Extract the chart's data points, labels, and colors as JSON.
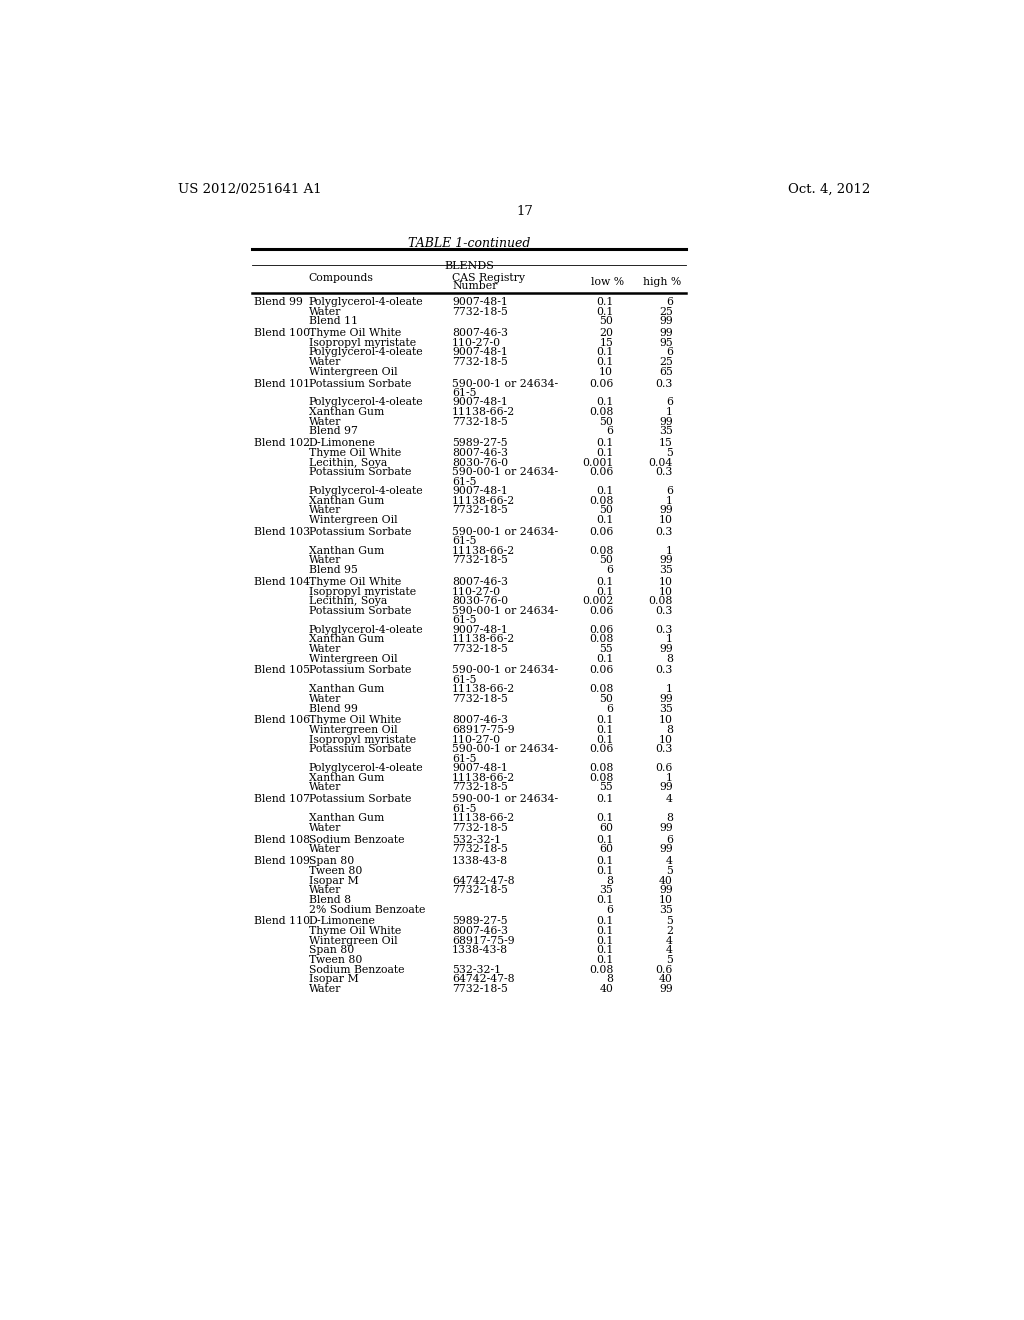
{
  "header_left": "US 2012/0251641 A1",
  "header_right": "Oct. 4, 2012",
  "page_number": "17",
  "table_title": "TABLE 1-continued",
  "section_title": "BLENDS",
  "rows": [
    [
      "Blend 99",
      "Polyglycerol-4-oleate",
      "9007-48-1",
      "0.1",
      "6"
    ],
    [
      "",
      "Water",
      "7732-18-5",
      "0.1",
      "25"
    ],
    [
      "",
      "Blend 11",
      "",
      "50",
      "99"
    ],
    [
      "Blend 100",
      "Thyme Oil White",
      "8007-46-3",
      "20",
      "99"
    ],
    [
      "",
      "Isopropyl myristate",
      "110-27-0",
      "15",
      "95"
    ],
    [
      "",
      "Polyglycerol-4-oleate",
      "9007-48-1",
      "0.1",
      "6"
    ],
    [
      "",
      "Water",
      "7732-18-5",
      "0.1",
      "25"
    ],
    [
      "",
      "Wintergreen Oil",
      "",
      "10",
      "65"
    ],
    [
      "Blend 101",
      "Potassium Sorbate",
      "590-00-1 or 24634-\n61-5",
      "0.06",
      "0.3"
    ],
    [
      "",
      "Polyglycerol-4-oleate",
      "9007-48-1",
      "0.1",
      "6"
    ],
    [
      "",
      "Xanthan Gum",
      "11138-66-2",
      "0.08",
      "1"
    ],
    [
      "",
      "Water",
      "7732-18-5",
      "50",
      "99"
    ],
    [
      "",
      "Blend 97",
      "",
      "6",
      "35"
    ],
    [
      "Blend 102",
      "D-Limonene",
      "5989-27-5",
      "0.1",
      "15"
    ],
    [
      "",
      "Thyme Oil White",
      "8007-46-3",
      "0.1",
      "5"
    ],
    [
      "",
      "Lecithin, Soya",
      "8030-76-0",
      "0.001",
      "0.04"
    ],
    [
      "",
      "Potassium Sorbate",
      "590-00-1 or 24634-\n61-5",
      "0.06",
      "0.3"
    ],
    [
      "",
      "Polyglycerol-4-oleate",
      "9007-48-1",
      "0.1",
      "6"
    ],
    [
      "",
      "Xanthan Gum",
      "11138-66-2",
      "0.08",
      "1"
    ],
    [
      "",
      "Water",
      "7732-18-5",
      "50",
      "99"
    ],
    [
      "",
      "Wintergreen Oil",
      "",
      "0.1",
      "10"
    ],
    [
      "Blend 103",
      "Potassium Sorbate",
      "590-00-1 or 24634-\n61-5",
      "0.06",
      "0.3"
    ],
    [
      "",
      "Xanthan Gum",
      "11138-66-2",
      "0.08",
      "1"
    ],
    [
      "",
      "Water",
      "7732-18-5",
      "50",
      "99"
    ],
    [
      "",
      "Blend 95",
      "",
      "6",
      "35"
    ],
    [
      "Blend 104",
      "Thyme Oil White",
      "8007-46-3",
      "0.1",
      "10"
    ],
    [
      "",
      "Isopropyl myristate",
      "110-27-0",
      "0.1",
      "10"
    ],
    [
      "",
      "Lecithin, Soya",
      "8030-76-0",
      "0.002",
      "0.08"
    ],
    [
      "",
      "Potassium Sorbate",
      "590-00-1 or 24634-\n61-5",
      "0.06",
      "0.3"
    ],
    [
      "",
      "Polyglycerol-4-oleate",
      "9007-48-1",
      "0.06",
      "0.3"
    ],
    [
      "",
      "Xanthan Gum",
      "11138-66-2",
      "0.08",
      "1"
    ],
    [
      "",
      "Water",
      "7732-18-5",
      "55",
      "99"
    ],
    [
      "",
      "Wintergreen Oil",
      "",
      "0.1",
      "8"
    ],
    [
      "Blend 105",
      "Potassium Sorbate",
      "590-00-1 or 24634-\n61-5",
      "0.06",
      "0.3"
    ],
    [
      "",
      "Xanthan Gum",
      "11138-66-2",
      "0.08",
      "1"
    ],
    [
      "",
      "Water",
      "7732-18-5",
      "50",
      "99"
    ],
    [
      "",
      "Blend 99",
      "",
      "6",
      "35"
    ],
    [
      "Blend 106",
      "Thyme Oil White",
      "8007-46-3",
      "0.1",
      "10"
    ],
    [
      "",
      "Wintergreen Oil",
      "68917-75-9",
      "0.1",
      "8"
    ],
    [
      "",
      "Isopropyl myristate",
      "110-27-0",
      "0.1",
      "10"
    ],
    [
      "",
      "Potassium Sorbate",
      "590-00-1 or 24634-\n61-5",
      "0.06",
      "0.3"
    ],
    [
      "",
      "Polyglycerol-4-oleate",
      "9007-48-1",
      "0.08",
      "0.6"
    ],
    [
      "",
      "Xanthan Gum",
      "11138-66-2",
      "0.08",
      "1"
    ],
    [
      "",
      "Water",
      "7732-18-5",
      "55",
      "99"
    ],
    [
      "Blend 107",
      "Potassium Sorbate",
      "590-00-1 or 24634-\n61-5",
      "0.1",
      "4"
    ],
    [
      "",
      "Xanthan Gum",
      "11138-66-2",
      "0.1",
      "8"
    ],
    [
      "",
      "Water",
      "7732-18-5",
      "60",
      "99"
    ],
    [
      "Blend 108",
      "Sodium Benzoate",
      "532-32-1",
      "0.1",
      "6"
    ],
    [
      "",
      "Water",
      "7732-18-5",
      "60",
      "99"
    ],
    [
      "Blend 109",
      "Span 80",
      "1338-43-8",
      "0.1",
      "4"
    ],
    [
      "",
      "Tween 80",
      "",
      "0.1",
      "5"
    ],
    [
      "",
      "Isopar M",
      "64742-47-8",
      "8",
      "40"
    ],
    [
      "",
      "Water",
      "7732-18-5",
      "35",
      "99"
    ],
    [
      "",
      "Blend 8",
      "",
      "0.1",
      "10"
    ],
    [
      "",
      "2% Sodium Benzoate",
      "",
      "6",
      "35"
    ],
    [
      "Blend 110",
      "D-Limonene",
      "5989-27-5",
      "0.1",
      "5"
    ],
    [
      "",
      "Thyme Oil White",
      "8007-46-3",
      "0.1",
      "2"
    ],
    [
      "",
      "Wintergreen Oil",
      "68917-75-9",
      "0.1",
      "4"
    ],
    [
      "",
      "Span 80",
      "1338-43-8",
      "0.1",
      "4"
    ],
    [
      "",
      "Tween 80",
      "",
      "0.1",
      "5"
    ],
    [
      "",
      "Sodium Benzoate",
      "532-32-1",
      "0.08",
      "0.6"
    ],
    [
      "",
      "Isopar M",
      "64742-47-8",
      "8",
      "40"
    ],
    [
      "",
      "Water",
      "7732-18-5",
      "40",
      "99"
    ]
  ]
}
